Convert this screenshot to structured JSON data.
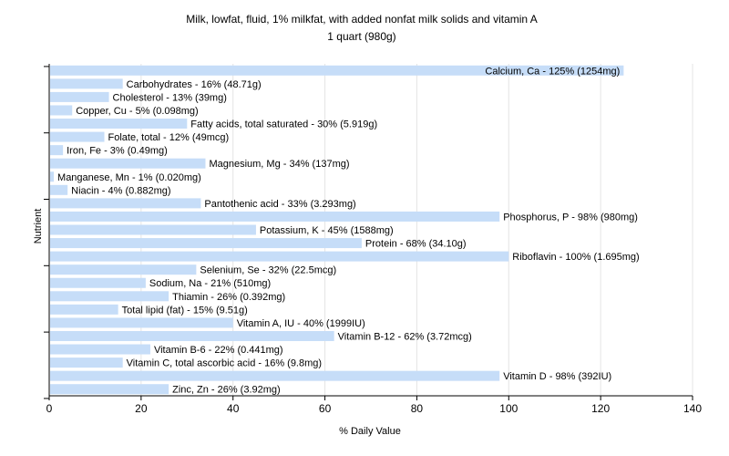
{
  "chart_data": {
    "type": "bar",
    "orientation": "horizontal",
    "title": "Milk, lowfat, fluid, 1% milkfat, with added nonfat milk solids and vitamin A",
    "subtitle": "1 quart (980g)",
    "xlabel": "% Daily Value",
    "ylabel": "Nutrient",
    "xlim": [
      0,
      140
    ],
    "xticks": [
      0,
      20,
      40,
      60,
      80,
      100,
      120,
      140
    ],
    "grid": true,
    "bar_color": "#c6ddf8",
    "categories": [
      "Calcium, Ca",
      "Carbohydrates",
      "Cholesterol",
      "Copper, Cu",
      "Fatty acids, total saturated",
      "Folate, total",
      "Iron, Fe",
      "Magnesium, Mg",
      "Manganese, Mn",
      "Niacin",
      "Pantothenic acid",
      "Phosphorus, P",
      "Potassium, K",
      "Protein",
      "Riboflavin",
      "Selenium, Se",
      "Sodium, Na",
      "Thiamin",
      "Total lipid (fat)",
      "Vitamin A, IU",
      "Vitamin B-12",
      "Vitamin B-6",
      "Vitamin C, total ascorbic acid",
      "Vitamin D",
      "Zinc, Zn"
    ],
    "values": [
      125,
      16,
      13,
      5,
      30,
      12,
      3,
      34,
      1,
      4,
      33,
      98,
      45,
      68,
      100,
      32,
      21,
      26,
      15,
      40,
      62,
      22,
      16,
      98,
      26
    ],
    "labels": [
      "Calcium, Ca - 125% (1254mg)",
      "Carbohydrates - 16% (48.71g)",
      "Cholesterol - 13% (39mg)",
      "Copper, Cu - 5% (0.098mg)",
      "Fatty acids, total saturated - 30% (5.919g)",
      "Folate, total - 12% (49mcg)",
      "Iron, Fe - 3% (0.49mg)",
      "Magnesium, Mg - 34% (137mg)",
      "Manganese, Mn - 1% (0.020mg)",
      "Niacin - 4% (0.882mg)",
      "Pantothenic acid - 33% (3.293mg)",
      "Phosphorus, P - 98% (980mg)",
      "Potassium, K - 45% (1588mg)",
      "Protein - 68% (34.10g)",
      "Riboflavin - 100% (1.695mg)",
      "Selenium, Se - 32% (22.5mcg)",
      "Sodium, Na - 21% (510mg)",
      "Thiamin - 26% (0.392mg)",
      "Total lipid (fat) - 15% (9.51g)",
      "Vitamin A, IU - 40% (1999IU)",
      "Vitamin B-12 - 62% (3.72mcg)",
      "Vitamin B-6 - 22% (0.441mg)",
      "Vitamin C, total ascorbic acid - 16% (9.8mg)",
      "Vitamin D - 98% (392IU)",
      "Zinc, Zn - 26% (3.92mg)"
    ]
  }
}
